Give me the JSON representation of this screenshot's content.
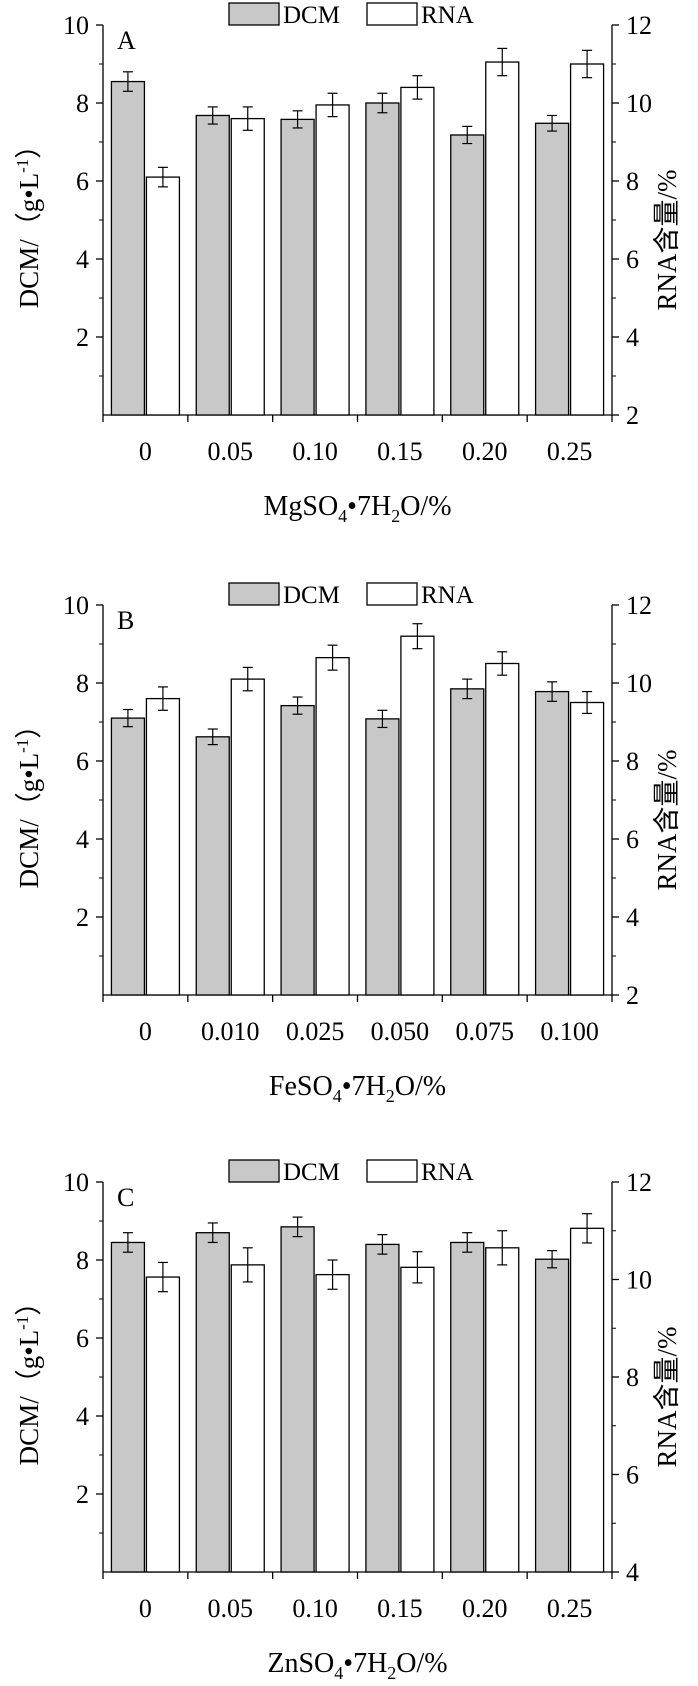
{
  "legend": {
    "dcm": "DCM",
    "rna": "RNA"
  },
  "colors": {
    "dcm_fill": "#c8c8c8",
    "rna_fill": "#ffffff",
    "stroke": "#000000"
  },
  "chart_data": [
    {
      "type": "bar",
      "panel_label": "A",
      "categories": [
        "0",
        "0.05",
        "0.10",
        "0.15",
        "0.20",
        "0.25"
      ],
      "xlabel": {
        "main": "MgSO",
        "sub1": "4",
        "mid": "•7H",
        "sub2": "2",
        "tail": "O/%"
      },
      "ylabel": "DCM/（g•L",
      "ylabel_sup": "-1",
      "ylabel_end": "）",
      "y2label": "RNA含量/%",
      "ylim": [
        0,
        10
      ],
      "yticks": [
        2,
        4,
        6,
        8,
        10
      ],
      "y2lim": [
        2,
        12
      ],
      "y2ticks": [
        2,
        4,
        6,
        8,
        10,
        12
      ],
      "series": [
        {
          "name": "DCM",
          "axis": "left",
          "values": [
            8.55,
            7.68,
            7.58,
            8.0,
            7.18,
            7.48
          ],
          "errors": [
            0.25,
            0.22,
            0.22,
            0.25,
            0.22,
            0.2
          ]
        },
        {
          "name": "RNA",
          "axis": "right",
          "values": [
            8.1,
            9.6,
            9.95,
            10.4,
            11.05,
            11.0
          ],
          "errors": [
            0.25,
            0.3,
            0.3,
            0.3,
            0.35,
            0.35
          ]
        }
      ]
    },
    {
      "type": "bar",
      "panel_label": "B",
      "categories": [
        "0",
        "0.010",
        "0.025",
        "0.050",
        "0.075",
        "0.100"
      ],
      "xlabel": {
        "main": "FeSO",
        "sub1": "4",
        "mid": "•7H",
        "sub2": "2",
        "tail": "O/%"
      },
      "ylabel": "DCM/（g•L",
      "ylabel_sup": "-1",
      "ylabel_end": "）",
      "y2label": "RNA含量/%",
      "ylim": [
        0,
        10
      ],
      "yticks": [
        2,
        4,
        6,
        8,
        10
      ],
      "y2lim": [
        2,
        12
      ],
      "y2ticks": [
        2,
        4,
        6,
        8,
        10,
        12
      ],
      "series": [
        {
          "name": "DCM",
          "axis": "left",
          "values": [
            7.1,
            6.62,
            7.42,
            7.08,
            7.85,
            7.78
          ],
          "errors": [
            0.22,
            0.2,
            0.22,
            0.22,
            0.25,
            0.25
          ]
        },
        {
          "name": "RNA",
          "axis": "right",
          "values": [
            9.6,
            10.1,
            10.65,
            11.2,
            10.5,
            9.5
          ],
          "errors": [
            0.3,
            0.3,
            0.32,
            0.32,
            0.3,
            0.28
          ]
        }
      ]
    },
    {
      "type": "bar",
      "panel_label": "C",
      "categories": [
        "0",
        "0.05",
        "0.10",
        "0.15",
        "0.20",
        "0.25"
      ],
      "xlabel": {
        "main": "ZnSO",
        "sub1": "4",
        "mid": "•7H",
        "sub2": "2",
        "tail": "O/%"
      },
      "ylabel": "DCM/（g•L",
      "ylabel_sup": "-1",
      "ylabel_end": "）",
      "y2label": "RNA含量/%",
      "ylim": [
        0,
        10
      ],
      "yticks": [
        2,
        4,
        6,
        8,
        10
      ],
      "y2lim": [
        4,
        12
      ],
      "y2ticks": [
        4,
        6,
        8,
        10,
        12
      ],
      "series": [
        {
          "name": "DCM",
          "axis": "left",
          "values": [
            8.45,
            8.7,
            8.85,
            8.4,
            8.45,
            8.02
          ],
          "errors": [
            0.25,
            0.25,
            0.25,
            0.25,
            0.25,
            0.22
          ]
        },
        {
          "name": "RNA",
          "axis": "right",
          "values": [
            10.05,
            10.3,
            10.1,
            10.25,
            10.65,
            11.05
          ],
          "errors": [
            0.3,
            0.35,
            0.3,
            0.32,
            0.35,
            0.3
          ]
        }
      ]
    }
  ]
}
